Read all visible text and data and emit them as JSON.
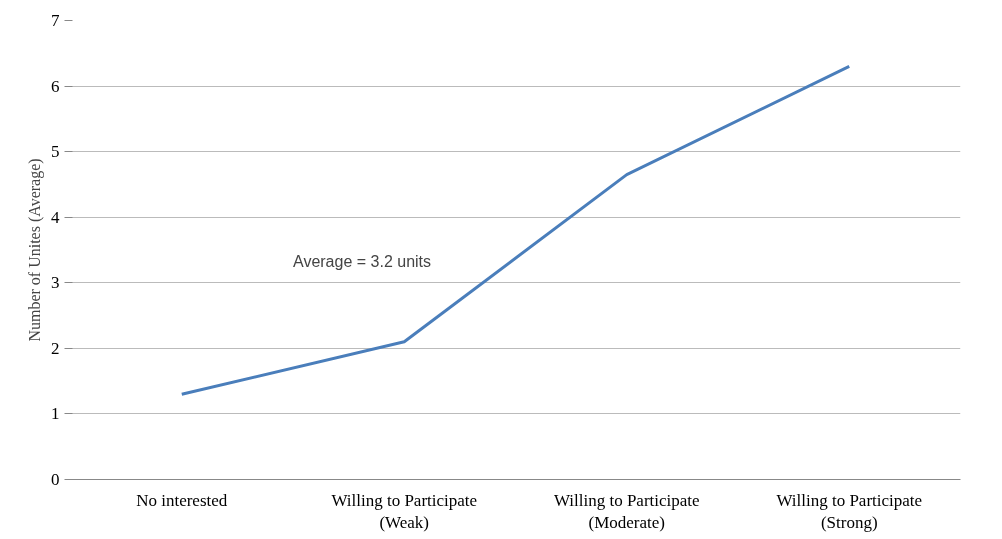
{
  "chart_data": {
    "type": "line",
    "ylabel": "Number of Unites (Average)",
    "categories": [
      "No interested",
      "Willing to Participate\n(Weak)",
      "Willing to Participate\n(Moderate)",
      "Willing to Participate\n(Strong)"
    ],
    "series": [
      {
        "color": "#4a7ebb",
        "values": [
          1.3,
          2.1,
          4.65,
          6.3
        ]
      }
    ],
    "ylim": [
      0,
      7
    ],
    "yticks": [
      0,
      1,
      2,
      3,
      4,
      5,
      6,
      7
    ],
    "grid": "y",
    "marker": "none",
    "line_style": "solid",
    "annotations": [
      "Average = 3.2 units"
    ]
  }
}
